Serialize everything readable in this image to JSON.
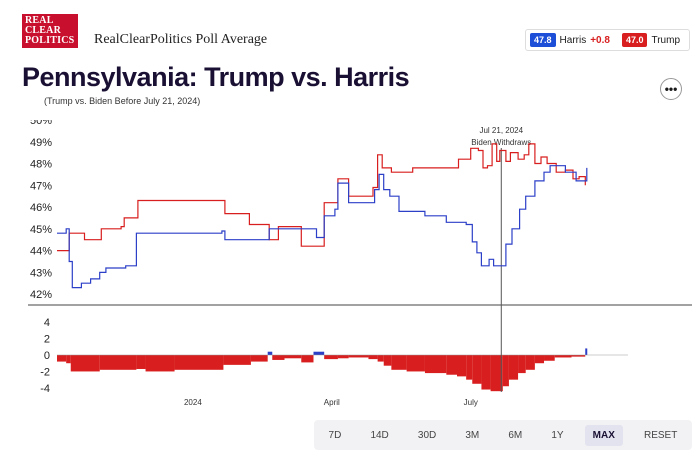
{
  "header": {
    "logo_lines": [
      "REAL",
      "CLEAR",
      "POLITICS"
    ],
    "brand": "RealClearPolitics Poll Average",
    "legend": {
      "harris_value": "47.8",
      "harris_label": "Harris",
      "harris_spread": "+0.8",
      "trump_value": "47.0",
      "trump_label": "Trump"
    },
    "more_label": "•••"
  },
  "title": "Pennsylvania: Trump vs. Harris",
  "subtitle": "(Trump vs. Biden Before July 21, 2024)",
  "controls": [
    "7D",
    "14D",
    "30D",
    "3M",
    "6M",
    "1Y",
    "MAX",
    "RESET"
  ],
  "active_control": "MAX",
  "colors": {
    "trump": "#d81e1e",
    "harris": "#2b3fc7",
    "marker": "#555555"
  },
  "chart_data": {
    "type": "line",
    "x_range": [
      "2023-10-04",
      "2024-10-12"
    ],
    "ylim": [
      41.5,
      50
    ],
    "y_ticks": [
      42,
      43,
      44,
      45,
      46,
      47,
      48,
      49,
      50
    ],
    "x_tick_labels": [
      {
        "date": "2024-01-01",
        "label": "2024"
      },
      {
        "date": "2024-04-01",
        "label": "April"
      },
      {
        "date": "2024-07-01",
        "label": "July"
      }
    ],
    "annotation": {
      "date": "2024-07-21",
      "label1": "Jul 21, 2024",
      "label2": "Biden Withdraws"
    },
    "series": [
      {
        "name": "Trump",
        "points": [
          [
            "2023-10-04",
            44.0
          ],
          [
            "2023-10-10",
            44.0
          ],
          [
            "2023-10-12",
            44.8
          ],
          [
            "2023-10-20",
            44.8
          ],
          [
            "2023-10-22",
            44.5
          ],
          [
            "2023-10-30",
            44.5
          ],
          [
            "2023-11-02",
            45.0
          ],
          [
            "2023-11-15",
            45.1
          ],
          [
            "2023-11-17",
            45.5
          ],
          [
            "2023-11-24",
            45.5
          ],
          [
            "2023-11-26",
            46.3
          ],
          [
            "2024-01-20",
            46.3
          ],
          [
            "2024-01-22",
            45.7
          ],
          [
            "2024-02-05",
            45.7
          ],
          [
            "2024-02-07",
            45.2
          ],
          [
            "2024-02-18",
            45.2
          ],
          [
            "2024-02-20",
            44.5
          ],
          [
            "2024-02-24",
            44.5
          ],
          [
            "2024-02-26",
            45.1
          ],
          [
            "2024-03-10",
            45.1
          ],
          [
            "2024-03-12",
            44.2
          ],
          [
            "2024-03-25",
            44.2
          ],
          [
            "2024-03-27",
            46.2
          ],
          [
            "2024-04-03",
            46.2
          ],
          [
            "2024-04-05",
            47.3
          ],
          [
            "2024-04-10",
            47.3
          ],
          [
            "2024-04-12",
            46.5
          ],
          [
            "2024-04-25",
            46.5
          ],
          [
            "2024-04-28",
            46.9
          ],
          [
            "2024-05-01",
            48.4
          ],
          [
            "2024-05-04",
            47.8
          ],
          [
            "2024-05-10",
            47.6
          ],
          [
            "2024-05-22",
            47.6
          ],
          [
            "2024-05-24",
            47.8
          ],
          [
            "2024-06-20",
            47.8
          ],
          [
            "2024-06-23",
            48.2
          ],
          [
            "2024-06-28",
            48.2
          ],
          [
            "2024-07-01",
            48.7
          ],
          [
            "2024-07-06",
            48.6
          ],
          [
            "2024-07-09",
            47.8
          ],
          [
            "2024-07-12",
            47.9
          ],
          [
            "2024-07-15",
            48.9
          ],
          [
            "2024-07-18",
            48.1
          ],
          [
            "2024-07-20",
            48.6
          ],
          [
            "2024-07-24",
            48.1
          ],
          [
            "2024-07-27",
            48.5
          ],
          [
            "2024-08-01",
            48.2
          ],
          [
            "2024-08-05",
            48.4
          ],
          [
            "2024-08-08",
            48.9
          ],
          [
            "2024-08-12",
            48.0
          ],
          [
            "2024-08-16",
            48.3
          ],
          [
            "2024-08-20",
            48.0
          ],
          [
            "2024-08-26",
            47.6
          ],
          [
            "2024-09-01",
            47.7
          ],
          [
            "2024-09-06",
            47.3
          ],
          [
            "2024-09-10",
            47.4
          ],
          [
            "2024-09-14",
            47.0
          ]
        ]
      },
      {
        "name": "Harris",
        "points": [
          [
            "2023-10-04",
            44.8
          ],
          [
            "2023-10-08",
            44.8
          ],
          [
            "2023-10-10",
            45.0
          ],
          [
            "2023-10-12",
            43.5
          ],
          [
            "2023-10-14",
            42.3
          ],
          [
            "2023-10-20",
            42.5
          ],
          [
            "2023-10-26",
            42.7
          ],
          [
            "2023-11-01",
            43.0
          ],
          [
            "2023-11-05",
            43.2
          ],
          [
            "2023-11-18",
            43.3
          ],
          [
            "2023-11-25",
            44.8
          ],
          [
            "2024-01-20",
            44.9
          ],
          [
            "2024-01-22",
            44.5
          ],
          [
            "2024-02-18",
            44.5
          ],
          [
            "2024-02-20",
            45.0
          ],
          [
            "2024-03-20",
            45.0
          ],
          [
            "2024-03-22",
            44.6
          ],
          [
            "2024-03-25",
            44.6
          ],
          [
            "2024-03-27",
            45.6
          ],
          [
            "2024-04-03",
            45.9
          ],
          [
            "2024-04-05",
            47.1
          ],
          [
            "2024-04-10",
            47.1
          ],
          [
            "2024-04-12",
            46.2
          ],
          [
            "2024-04-26",
            46.2
          ],
          [
            "2024-04-29",
            46.8
          ],
          [
            "2024-05-02",
            47.5
          ],
          [
            "2024-05-05",
            46.8
          ],
          [
            "2024-05-09",
            46.5
          ],
          [
            "2024-05-15",
            45.8
          ],
          [
            "2024-06-01",
            45.6
          ],
          [
            "2024-06-15",
            45.3
          ],
          [
            "2024-06-28",
            45.2
          ],
          [
            "2024-07-02",
            44.4
          ],
          [
            "2024-07-05",
            43.9
          ],
          [
            "2024-07-08",
            43.3
          ],
          [
            "2024-07-13",
            43.6
          ],
          [
            "2024-07-16",
            43.3
          ],
          [
            "2024-07-21",
            43.3
          ],
          [
            "2024-07-24",
            44.3
          ],
          [
            "2024-07-28",
            45.0
          ],
          [
            "2024-08-02",
            45.9
          ],
          [
            "2024-08-06",
            46.5
          ],
          [
            "2024-08-12",
            47.2
          ],
          [
            "2024-08-18",
            47.6
          ],
          [
            "2024-08-22",
            47.9
          ],
          [
            "2024-09-01",
            47.6
          ],
          [
            "2024-09-08",
            47.2
          ],
          [
            "2024-09-13",
            47.2
          ],
          [
            "2024-09-15",
            47.8
          ]
        ]
      }
    ],
    "spread_chart": {
      "ylim": [
        -4.5,
        4.5
      ],
      "y_ticks": [
        4,
        2,
        0,
        -2,
        -4
      ],
      "bars": [
        [
          "2023-10-04",
          -0.8
        ],
        [
          "2023-10-10",
          -1.0
        ],
        [
          "2023-10-13",
          -2.0
        ],
        [
          "2023-11-01",
          -1.8
        ],
        [
          "2023-11-25",
          -1.7
        ],
        [
          "2023-12-01",
          -2.0
        ],
        [
          "2023-12-20",
          -1.8
        ],
        [
          "2024-01-21",
          -1.2
        ],
        [
          "2024-02-08",
          -0.8
        ],
        [
          "2024-02-19",
          0.4
        ],
        [
          "2024-02-22",
          -0.6
        ],
        [
          "2024-03-01",
          -0.4
        ],
        [
          "2024-03-12",
          -0.9
        ],
        [
          "2024-03-20",
          0.4
        ],
        [
          "2024-03-27",
          -0.5
        ],
        [
          "2024-04-05",
          -0.4
        ],
        [
          "2024-04-12",
          -0.3
        ],
        [
          "2024-04-25",
          -0.5
        ],
        [
          "2024-05-01",
          -0.8
        ],
        [
          "2024-05-05",
          -1.3
        ],
        [
          "2024-05-10",
          -1.8
        ],
        [
          "2024-05-20",
          -2.0
        ],
        [
          "2024-06-01",
          -2.2
        ],
        [
          "2024-06-15",
          -2.4
        ],
        [
          "2024-06-22",
          -2.6
        ],
        [
          "2024-06-28",
          -3.0
        ],
        [
          "2024-07-02",
          -3.5
        ],
        [
          "2024-07-08",
          -4.2
        ],
        [
          "2024-07-14",
          -4.4
        ],
        [
          "2024-07-22",
          -3.8
        ],
        [
          "2024-07-26",
          -3.0
        ],
        [
          "2024-08-01",
          -2.2
        ],
        [
          "2024-08-06",
          -1.8
        ],
        [
          "2024-08-12",
          -1.0
        ],
        [
          "2024-08-18",
          -0.7
        ],
        [
          "2024-08-25",
          -0.3
        ],
        [
          "2024-09-05",
          -0.2
        ],
        [
          "2024-09-14",
          0.8
        ]
      ]
    }
  }
}
